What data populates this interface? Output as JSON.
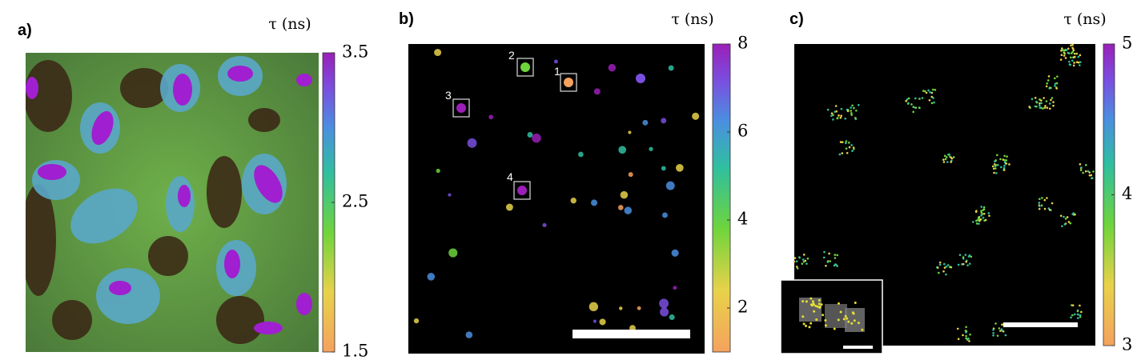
{
  "panels": [
    {
      "label": "a)",
      "colorbar": {
        "title": "τ (ns)",
        "lim": [
          1.5,
          3.5
        ],
        "ticks": [
          3.5,
          2.5,
          1.5
        ]
      }
    },
    {
      "label": "b)",
      "colorbar": {
        "title": "τ (ns)",
        "lim": [
          1,
          8
        ],
        "ticks": [
          8,
          6,
          4,
          2
        ]
      },
      "rois": [
        {
          "label": "1"
        },
        {
          "label": "2"
        },
        {
          "label": "3"
        },
        {
          "label": "4"
        }
      ]
    },
    {
      "label": "c)",
      "colorbar": {
        "title": "τ (ns)",
        "lim": [
          3,
          5
        ],
        "ticks": [
          5,
          4,
          3
        ]
      }
    }
  ]
}
